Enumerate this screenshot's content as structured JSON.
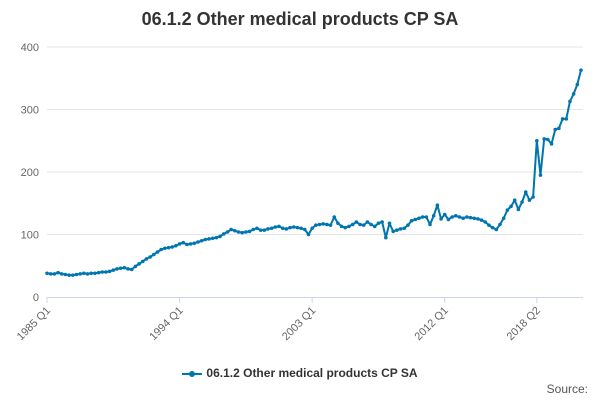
{
  "chart_data": {
    "type": "line",
    "title": "06.1.2 Other medical products CP SA",
    "xlabel": "",
    "ylabel": "",
    "ylim": [
      0,
      400
    ],
    "yticks": [
      0,
      100,
      200,
      300,
      400
    ],
    "x_start": "1985 Q1",
    "x_end": "2018 Q2",
    "xticks": [
      "1985 Q1",
      "1994 Q1",
      "2003 Q1",
      "2012 Q1",
      "2018 Q2"
    ],
    "grid": true,
    "legend_position": "bottom-center",
    "series_color": "#0075B0",
    "series": [
      {
        "name": "06.1.2 Other medical products CP SA",
        "values": [
          38,
          37,
          37,
          39,
          37,
          36,
          35,
          35,
          36,
          37,
          38,
          37,
          38,
          38,
          39,
          40,
          40,
          41,
          43,
          45,
          46,
          47,
          45,
          44,
          49,
          53,
          57,
          61,
          64,
          68,
          72,
          76,
          78,
          79,
          80,
          82,
          85,
          87,
          84,
          85,
          86,
          88,
          90,
          92,
          93,
          94,
          95,
          97,
          101,
          104,
          108,
          106,
          104,
          103,
          104,
          105,
          108,
          110,
          107,
          107,
          109,
          110,
          112,
          113,
          110,
          109,
          111,
          112,
          111,
          110,
          108,
          100,
          110,
          115,
          116,
          117,
          116,
          115,
          128,
          118,
          113,
          111,
          113,
          116,
          120,
          116,
          115,
          120,
          116,
          113,
          118,
          120,
          95,
          118,
          105,
          107,
          109,
          110,
          115,
          122,
          124,
          126,
          128,
          128,
          116,
          130,
          147,
          125,
          132,
          124,
          128,
          130,
          128,
          126,
          128,
          127,
          126,
          125,
          123,
          120,
          115,
          111,
          108,
          116,
          126,
          139,
          145,
          155,
          140,
          152,
          168,
          155,
          160,
          250,
          195,
          253,
          252,
          245,
          268,
          270,
          285,
          285,
          313,
          325,
          340,
          363
        ]
      }
    ]
  },
  "legend": {
    "label": "06.1.2 Other medical products CP SA"
  },
  "credits": {
    "label": "Source:"
  }
}
